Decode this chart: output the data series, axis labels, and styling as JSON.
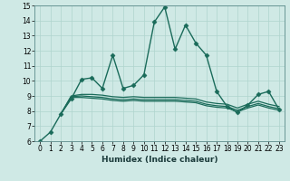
{
  "xlabel": "Humidex (Indice chaleur)",
  "xlim": [
    -0.5,
    23.5
  ],
  "ylim": [
    6,
    15
  ],
  "xticks": [
    0,
    1,
    2,
    3,
    4,
    5,
    6,
    7,
    8,
    9,
    10,
    11,
    12,
    13,
    14,
    15,
    16,
    17,
    18,
    19,
    20,
    21,
    22,
    23
  ],
  "yticks": [
    6,
    7,
    8,
    9,
    10,
    11,
    12,
    13,
    14,
    15
  ],
  "bg_color": "#cfe9e5",
  "line_color": "#1a6b5a",
  "grid_color": "#aed4ce",
  "series": [
    {
      "x": [
        0,
        1,
        2,
        3,
        4,
        5,
        6,
        7,
        8,
        9,
        10,
        11,
        12,
        13,
        14,
        15,
        16,
        17,
        18,
        19,
        20,
        21,
        22,
        23
      ],
      "y": [
        6.0,
        6.6,
        7.8,
        8.8,
        10.1,
        10.2,
        9.5,
        11.7,
        9.5,
        9.7,
        10.4,
        13.9,
        14.9,
        12.1,
        13.7,
        12.5,
        11.7,
        9.3,
        8.3,
        7.9,
        8.4,
        9.1,
        9.3,
        8.1
      ],
      "marker": "D",
      "markersize": 2.5,
      "linewidth": 1.0,
      "has_marker": true
    },
    {
      "x": [
        2,
        3,
        4,
        5,
        6,
        7,
        8,
        9,
        10,
        11,
        12,
        13,
        14,
        15,
        16,
        17,
        18,
        19,
        20,
        21,
        22,
        23
      ],
      "y": [
        7.8,
        8.9,
        8.9,
        8.85,
        8.8,
        8.7,
        8.65,
        8.7,
        8.65,
        8.65,
        8.65,
        8.65,
        8.6,
        8.55,
        8.35,
        8.25,
        8.2,
        7.95,
        8.2,
        8.4,
        8.2,
        8.05
      ],
      "marker": null,
      "markersize": 0,
      "linewidth": 0.9,
      "has_marker": false
    },
    {
      "x": [
        2,
        3,
        4,
        5,
        6,
        7,
        8,
        9,
        10,
        11,
        12,
        13,
        14,
        15,
        16,
        17,
        18,
        19,
        20,
        21,
        22,
        23
      ],
      "y": [
        7.8,
        8.95,
        9.0,
        8.95,
        8.9,
        8.8,
        8.75,
        8.8,
        8.75,
        8.75,
        8.75,
        8.75,
        8.7,
        8.65,
        8.45,
        8.35,
        8.3,
        8.05,
        8.3,
        8.5,
        8.3,
        8.15
      ],
      "marker": null,
      "markersize": 0,
      "linewidth": 0.9,
      "has_marker": false
    },
    {
      "x": [
        2,
        3,
        4,
        5,
        6,
        7,
        8,
        9,
        10,
        11,
        12,
        13,
        14,
        15,
        16,
        17,
        18,
        19,
        20,
        21,
        22,
        23
      ],
      "y": [
        7.8,
        9.0,
        9.1,
        9.1,
        9.05,
        8.95,
        8.9,
        8.95,
        8.9,
        8.9,
        8.9,
        8.9,
        8.85,
        8.8,
        8.6,
        8.5,
        8.45,
        8.2,
        8.45,
        8.65,
        8.45,
        8.3
      ],
      "marker": null,
      "markersize": 0,
      "linewidth": 0.9,
      "has_marker": false
    }
  ]
}
